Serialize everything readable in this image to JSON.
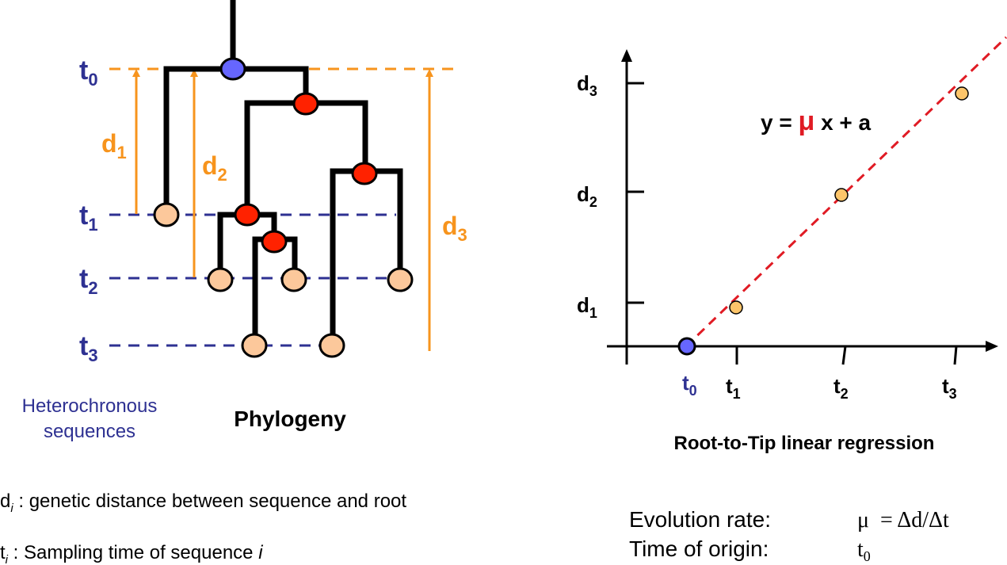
{
  "phylogeny": {
    "time_labels": [
      {
        "main": "t",
        "sub": "0"
      },
      {
        "main": "t",
        "sub": "1"
      },
      {
        "main": "t",
        "sub": "2"
      },
      {
        "main": "t",
        "sub": "3"
      }
    ],
    "distance_labels": [
      {
        "main": "d",
        "sub": "1"
      },
      {
        "main": "d",
        "sub": "2"
      },
      {
        "main": "d",
        "sub": "3"
      }
    ],
    "side_label_line1": "Heterochronous",
    "side_label_line2": "sequences",
    "title": "Phylogeny"
  },
  "regression": {
    "title": "Root-to-Tip linear regression",
    "equation": {
      "left": "y = ",
      "mu": "μ",
      "right": " x + a"
    },
    "y_ticks": [
      {
        "main": "d",
        "sub": "1"
      },
      {
        "main": "d",
        "sub": "2"
      },
      {
        "main": "d",
        "sub": "3"
      }
    ],
    "x_ticks": [
      {
        "main": "t",
        "sub": "0"
      },
      {
        "main": "t",
        "sub": "1"
      },
      {
        "main": "t",
        "sub": "2"
      },
      {
        "main": "t",
        "sub": "3"
      }
    ]
  },
  "legend": {
    "d_def": {
      "main": "d",
      "sub": "i",
      "text": " : genetic distance between sequence and root"
    },
    "t_def": {
      "main": "t",
      "sub": "i",
      "text": " : Sampling time of sequence ",
      "var": "i"
    }
  },
  "summary": {
    "rate_label": "Evolution rate:",
    "rate_value": "μ  = Δd/Δt",
    "origin_label": "Time of origin:",
    "origin_main": "t",
    "origin_sub": "0"
  },
  "colors": {
    "navy": "#2e3192",
    "orange": "#f7941d",
    "root_node": "#6666ff",
    "internal_node": "#ff2200",
    "tip_node": "#fcc89b",
    "point": "#fdc56a",
    "regression_line": "#e01b24"
  }
}
